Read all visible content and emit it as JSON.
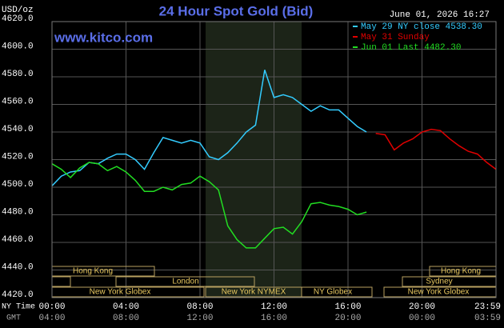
{
  "chart_data": {
    "type": "line",
    "title": "24 Hour Spot Gold (Bid)",
    "source": "www.kitco.com",
    "y_label": "USD/oz",
    "timestamp": "June 01, 2026 16:27",
    "x_row_labels": [
      "NY Time",
      "GMT"
    ],
    "xlim": [
      0,
      24
    ],
    "xticks": [
      {
        "value": 0,
        "label": "00:00"
      },
      {
        "value": 4,
        "label": "04:00"
      },
      {
        "value": 8,
        "label": "08:00"
      },
      {
        "value": 12,
        "label": "12:00"
      },
      {
        "value": 16,
        "label": "16:00"
      },
      {
        "value": 20,
        "label": "20:00"
      },
      {
        "value": 24,
        "label": "23:59"
      }
    ],
    "gmt_labels": [
      "04:00",
      "08:00",
      "12:00",
      "16:00",
      "20:00",
      "00:00",
      "03:59"
    ],
    "ylim": [
      4420,
      4620
    ],
    "yticks": [
      {
        "value": 4420,
        "label": "4420.0"
      },
      {
        "value": 4440,
        "label": "4440.0"
      },
      {
        "value": 4460,
        "label": "4460.0"
      },
      {
        "value": 4480,
        "label": "4480.0"
      },
      {
        "value": 4500,
        "label": "4500.0"
      },
      {
        "value": 4520,
        "label": "4520.0"
      },
      {
        "value": 4540,
        "label": "4540.0"
      },
      {
        "value": 4560,
        "label": "4560.0"
      },
      {
        "value": 4580,
        "label": "4580.0"
      },
      {
        "value": 4600,
        "label": "4600.0"
      },
      {
        "value": 4620,
        "label": "4620.0"
      }
    ],
    "grid": true,
    "sessions": [
      "Hong Kong",
      "London",
      "New York Globex",
      "New York NYMEX",
      "NY Globex",
      "Hong Kong",
      "Sydney",
      "New York Globex"
    ],
    "x": [
      0,
      0.5,
      1,
      1.5,
      2,
      2.5,
      3,
      3.5,
      4,
      4.5,
      5,
      5.5,
      6,
      6.5,
      7,
      7.5,
      8,
      8.5,
      9,
      9.5,
      10,
      10.5,
      11,
      11.5,
      12,
      12.5,
      13,
      13.5,
      14,
      14.5,
      15,
      15.5,
      16,
      16.5,
      17,
      17.5,
      18,
      18.5,
      19,
      19.5,
      20,
      20.5,
      21,
      21.5,
      22,
      22.5,
      23,
      23.5,
      24
    ],
    "series": [
      {
        "name": "May 29 NY close 4538.30",
        "color": "#33ccff",
        "values": [
          4501,
          4508,
          4511,
          4512,
          4518,
          4517,
          4521,
          4524,
          4524,
          4520,
          4513,
          4525,
          4536,
          4534,
          4532,
          4534,
          4532,
          4522,
          4520,
          4525,
          4532,
          4540,
          4545,
          4585,
          4565,
          4567,
          4565,
          4560,
          4555,
          4559,
          4556,
          4556,
          4550,
          4544,
          4540,
          null,
          null,
          null,
          null,
          null,
          null,
          null,
          null,
          null,
          null,
          null,
          null,
          null,
          null
        ]
      },
      {
        "name": "May 31 Sunday",
        "color": "#e00000",
        "values": [
          null,
          null,
          null,
          null,
          null,
          null,
          null,
          null,
          null,
          null,
          null,
          null,
          null,
          null,
          null,
          null,
          null,
          null,
          null,
          null,
          null,
          null,
          null,
          null,
          null,
          null,
          null,
          null,
          null,
          null,
          null,
          null,
          null,
          null,
          null,
          4539,
          4538,
          4527,
          4532,
          4535,
          4540,
          4542,
          4541,
          4535,
          4530,
          4526,
          4524,
          4518,
          4513
        ]
      },
      {
        "name": "Jun 01 Last 4482.30",
        "color": "#22dd22",
        "values": [
          4517,
          4513,
          4507,
          4514,
          4518,
          4517,
          4512,
          4515,
          4511,
          4505,
          4497,
          4497,
          4500,
          4498,
          4502,
          4503,
          4508,
          4504,
          4498,
          4472,
          4462,
          4456,
          4456,
          4463,
          4470,
          4471,
          4466,
          4475,
          4488,
          4489,
          4487,
          4486,
          4484,
          4480,
          4482,
          null,
          null,
          null,
          null,
          null,
          null,
          null,
          null,
          null,
          null,
          null,
          null,
          null,
          null
        ]
      }
    ]
  }
}
